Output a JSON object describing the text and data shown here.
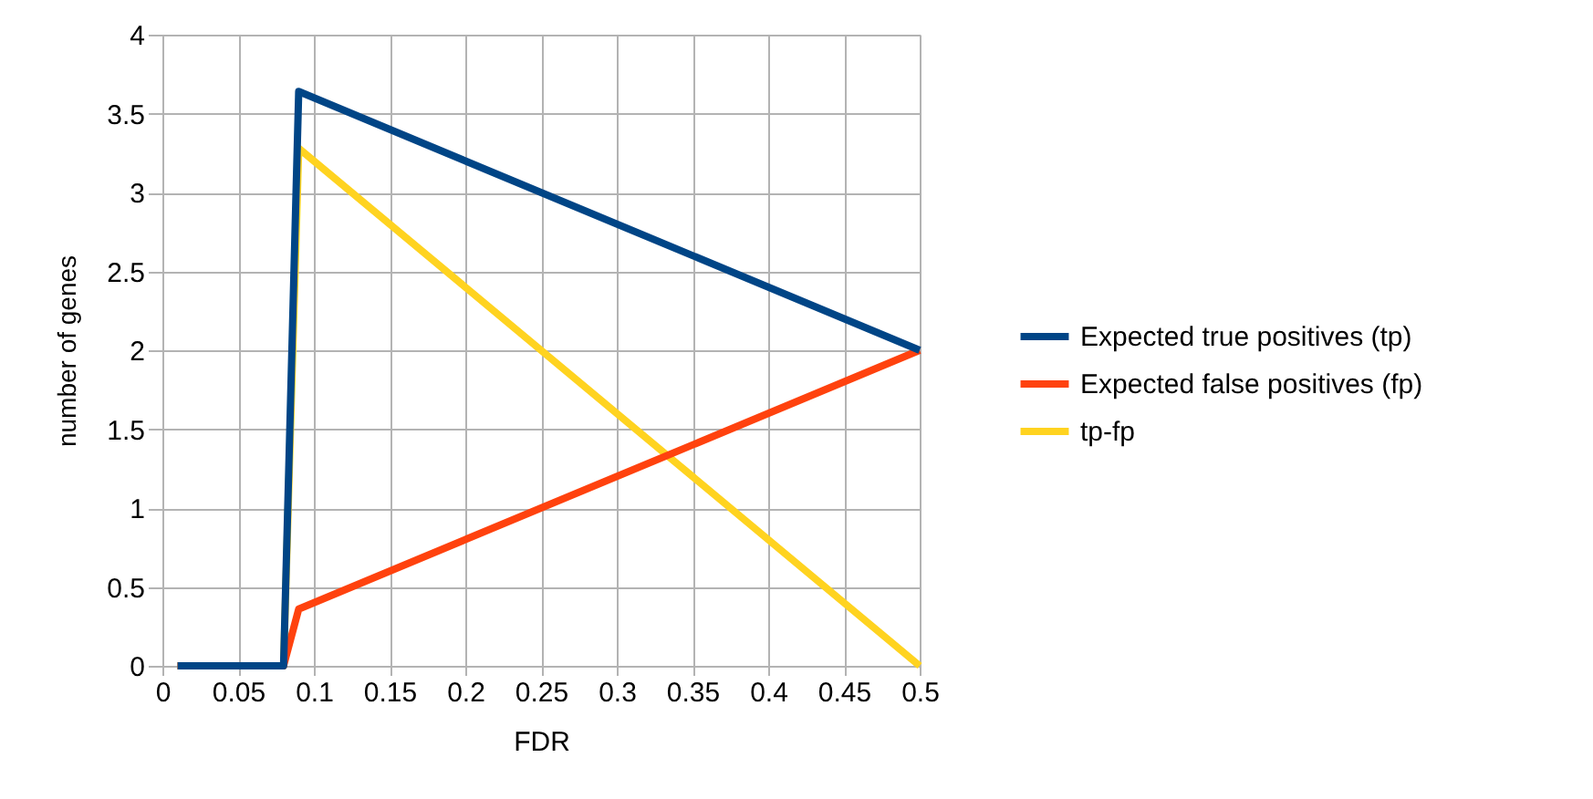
{
  "chart_data": {
    "type": "line",
    "xlabel": "FDR",
    "ylabel": "number of genes",
    "x": [
      0.01,
      0.08,
      0.09,
      0.5
    ],
    "series": [
      {
        "name": "Expected true positives (tp)",
        "color": "#004586",
        "values": [
          0,
          0,
          3.64,
          2
        ]
      },
      {
        "name": "Expected false positives (fp)",
        "color": "#ff420e",
        "values": [
          0,
          0,
          0.36,
          2
        ]
      },
      {
        "name": "tp-fp",
        "color": "#ffd320",
        "values": [
          0,
          0,
          3.28,
          0
        ]
      }
    ],
    "xlim": [
      0,
      0.5
    ],
    "xticks": [
      0,
      0.05,
      0.1,
      0.15,
      0.2,
      0.25,
      0.3,
      0.35,
      0.4,
      0.45,
      0.5
    ],
    "ylim": [
      0,
      4
    ],
    "yticks": [
      0,
      0.5,
      1,
      1.5,
      2,
      2.5,
      3,
      3.5,
      4
    ],
    "grid": true,
    "legend": "right",
    "marker": "none",
    "line_style": "solid"
  }
}
